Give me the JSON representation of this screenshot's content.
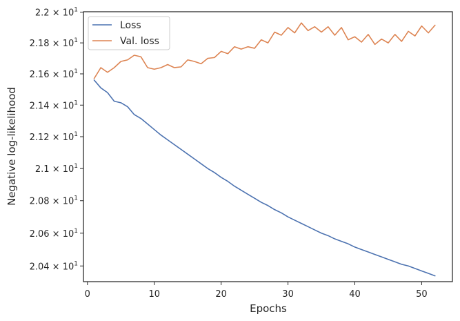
{
  "chart_data": {
    "type": "line",
    "title": "",
    "xlabel": "Epochs",
    "ylabel": "Negative log-likelihood",
    "xlim": [
      -0.6,
      54.6
    ],
    "ylim": [
      20.305,
      22.003
    ],
    "y_scale": "log",
    "grid": false,
    "legend_position": "top-left",
    "x_ticks": [
      0,
      10,
      20,
      30,
      40,
      50
    ],
    "y_ticks": [
      {
        "value": 20.4,
        "mantissa": "2.04",
        "base": "10",
        "exponent": "1"
      },
      {
        "value": 20.6,
        "mantissa": "2.06",
        "base": "10",
        "exponent": "1"
      },
      {
        "value": 20.8,
        "mantissa": "2.08",
        "base": "10",
        "exponent": "1"
      },
      {
        "value": 21.0,
        "mantissa": "2.1",
        "base": "10",
        "exponent": "1"
      },
      {
        "value": 21.2,
        "mantissa": "2.12",
        "base": "10",
        "exponent": "1"
      },
      {
        "value": 21.4,
        "mantissa": "2.14",
        "base": "10",
        "exponent": "1"
      },
      {
        "value": 21.6,
        "mantissa": "2.16",
        "base": "10",
        "exponent": "1"
      },
      {
        "value": 21.8,
        "mantissa": "2.18",
        "base": "10",
        "exponent": "1"
      },
      {
        "value": 22.0,
        "mantissa": "2.2",
        "base": "10",
        "exponent": "1"
      }
    ],
    "x": [
      1,
      2,
      3,
      4,
      5,
      6,
      7,
      8,
      9,
      10,
      11,
      12,
      13,
      14,
      15,
      16,
      17,
      18,
      19,
      20,
      21,
      22,
      23,
      24,
      25,
      26,
      27,
      28,
      29,
      30,
      31,
      32,
      33,
      34,
      35,
      36,
      37,
      38,
      39,
      40,
      41,
      42,
      43,
      44,
      45,
      46,
      47,
      48,
      49,
      50,
      51,
      52
    ],
    "series": [
      {
        "name": "Loss",
        "color": "#4c72b0",
        "values": [
          21.56,
          21.51,
          21.48,
          21.425,
          21.415,
          21.39,
          21.34,
          21.315,
          21.28,
          21.245,
          21.21,
          21.18,
          21.15,
          21.12,
          21.09,
          21.06,
          21.03,
          21.0,
          20.975,
          20.945,
          20.92,
          20.89,
          20.865,
          20.84,
          20.815,
          20.79,
          20.77,
          20.745,
          20.725,
          20.7,
          20.68,
          20.66,
          20.64,
          20.62,
          20.6,
          20.585,
          20.565,
          20.55,
          20.535,
          20.515,
          20.5,
          20.485,
          20.47,
          20.455,
          20.44,
          20.425,
          20.41,
          20.4,
          20.385,
          20.37,
          20.355,
          20.34
        ]
      },
      {
        "name": "Val. loss",
        "color": "#dd8452",
        "values": [
          21.57,
          21.64,
          21.61,
          21.64,
          21.68,
          21.69,
          21.72,
          21.71,
          21.64,
          21.63,
          21.64,
          21.66,
          21.64,
          21.645,
          21.69,
          21.68,
          21.665,
          21.7,
          21.705,
          21.745,
          21.73,
          21.775,
          21.76,
          21.775,
          21.765,
          21.82,
          21.8,
          21.87,
          21.85,
          21.9,
          21.865,
          21.93,
          21.88,
          21.905,
          21.87,
          21.905,
          21.85,
          21.9,
          21.82,
          21.84,
          21.805,
          21.855,
          21.79,
          21.825,
          21.8,
          21.855,
          21.81,
          21.875,
          21.845,
          21.91,
          21.865,
          21.915
        ]
      }
    ]
  }
}
